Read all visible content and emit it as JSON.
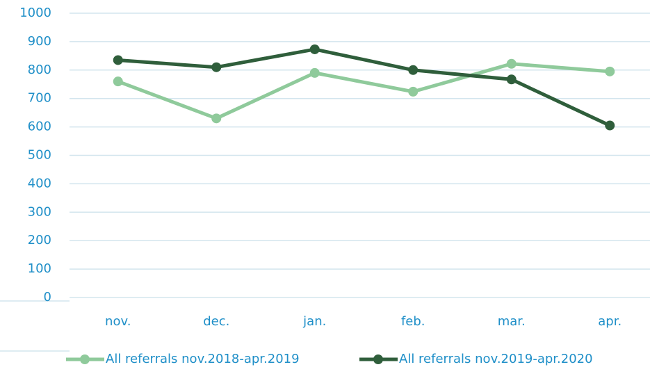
{
  "chart_data": {
    "type": "line",
    "categories": [
      "nov.",
      "dec.",
      "jan.",
      "feb.",
      "mar.",
      "apr."
    ],
    "series": [
      {
        "name": "All referrals nov.2018-apr.2019",
        "color": "#8fca9b",
        "values": [
          760,
          630,
          790,
          724,
          822,
          795
        ]
      },
      {
        "name": "All referrals nov.2019-apr.2020",
        "color": "#2f5e3b",
        "values": [
          835,
          810,
          873,
          800,
          767,
          605
        ]
      }
    ],
    "ylim": [
      0,
      1000
    ],
    "yticks": [
      0,
      100,
      200,
      300,
      400,
      500,
      600,
      700,
      800,
      900,
      1000
    ],
    "grid": true,
    "legend": "bottom"
  }
}
